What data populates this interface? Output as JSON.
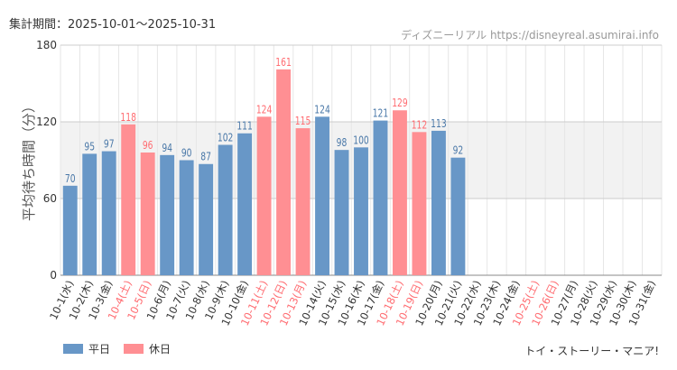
{
  "header": {
    "period": "集計期間：2025-10-01〜2025-10-31",
    "credit": "ディズニーリアル https://disneyreal.asumirai.info"
  },
  "legend": {
    "weekday": "平日",
    "holiday": "休日"
  },
  "footer": "トイ・ストーリー・マニア!",
  "colors": {
    "weekday": "#6897c7",
    "holiday": "#ff8f93",
    "weekday_label": "#4a78a8",
    "holiday_label": "#ff6b70"
  },
  "chart_data": {
    "type": "bar",
    "title": "",
    "ylabel": "平均待ち時間（分）",
    "xlabel": "",
    "ylim": [
      0,
      180
    ],
    "yticks": [
      0,
      60,
      120,
      180
    ],
    "categories": [
      "10-1(水)",
      "10-2(木)",
      "10-3(金)",
      "10-4(土)",
      "10-5(日)",
      "10-6(月)",
      "10-7(火)",
      "10-8(水)",
      "10-9(木)",
      "10-10(金)",
      "10-11(土)",
      "10-12(日)",
      "10-13(月)",
      "10-14(火)",
      "10-15(水)",
      "10-16(木)",
      "10-17(金)",
      "10-18(土)",
      "10-19(日)",
      "10-20(月)",
      "10-21(火)",
      "10-22(水)",
      "10-23(木)",
      "10-24(金)",
      "10-25(土)",
      "10-26(日)",
      "10-27(月)",
      "10-28(火)",
      "10-29(水)",
      "10-30(木)",
      "10-31(金)"
    ],
    "holiday": [
      false,
      false,
      false,
      true,
      true,
      false,
      false,
      false,
      false,
      false,
      true,
      true,
      true,
      false,
      false,
      false,
      false,
      true,
      true,
      false,
      false,
      false,
      false,
      false,
      true,
      true,
      false,
      false,
      false,
      false,
      false
    ],
    "values": [
      70,
      95,
      97,
      118,
      96,
      94,
      90,
      87,
      102,
      111,
      124,
      161,
      115,
      124,
      98,
      100,
      121,
      129,
      112,
      113,
      92,
      null,
      null,
      null,
      null,
      null,
      null,
      null,
      null,
      null,
      null
    ]
  }
}
